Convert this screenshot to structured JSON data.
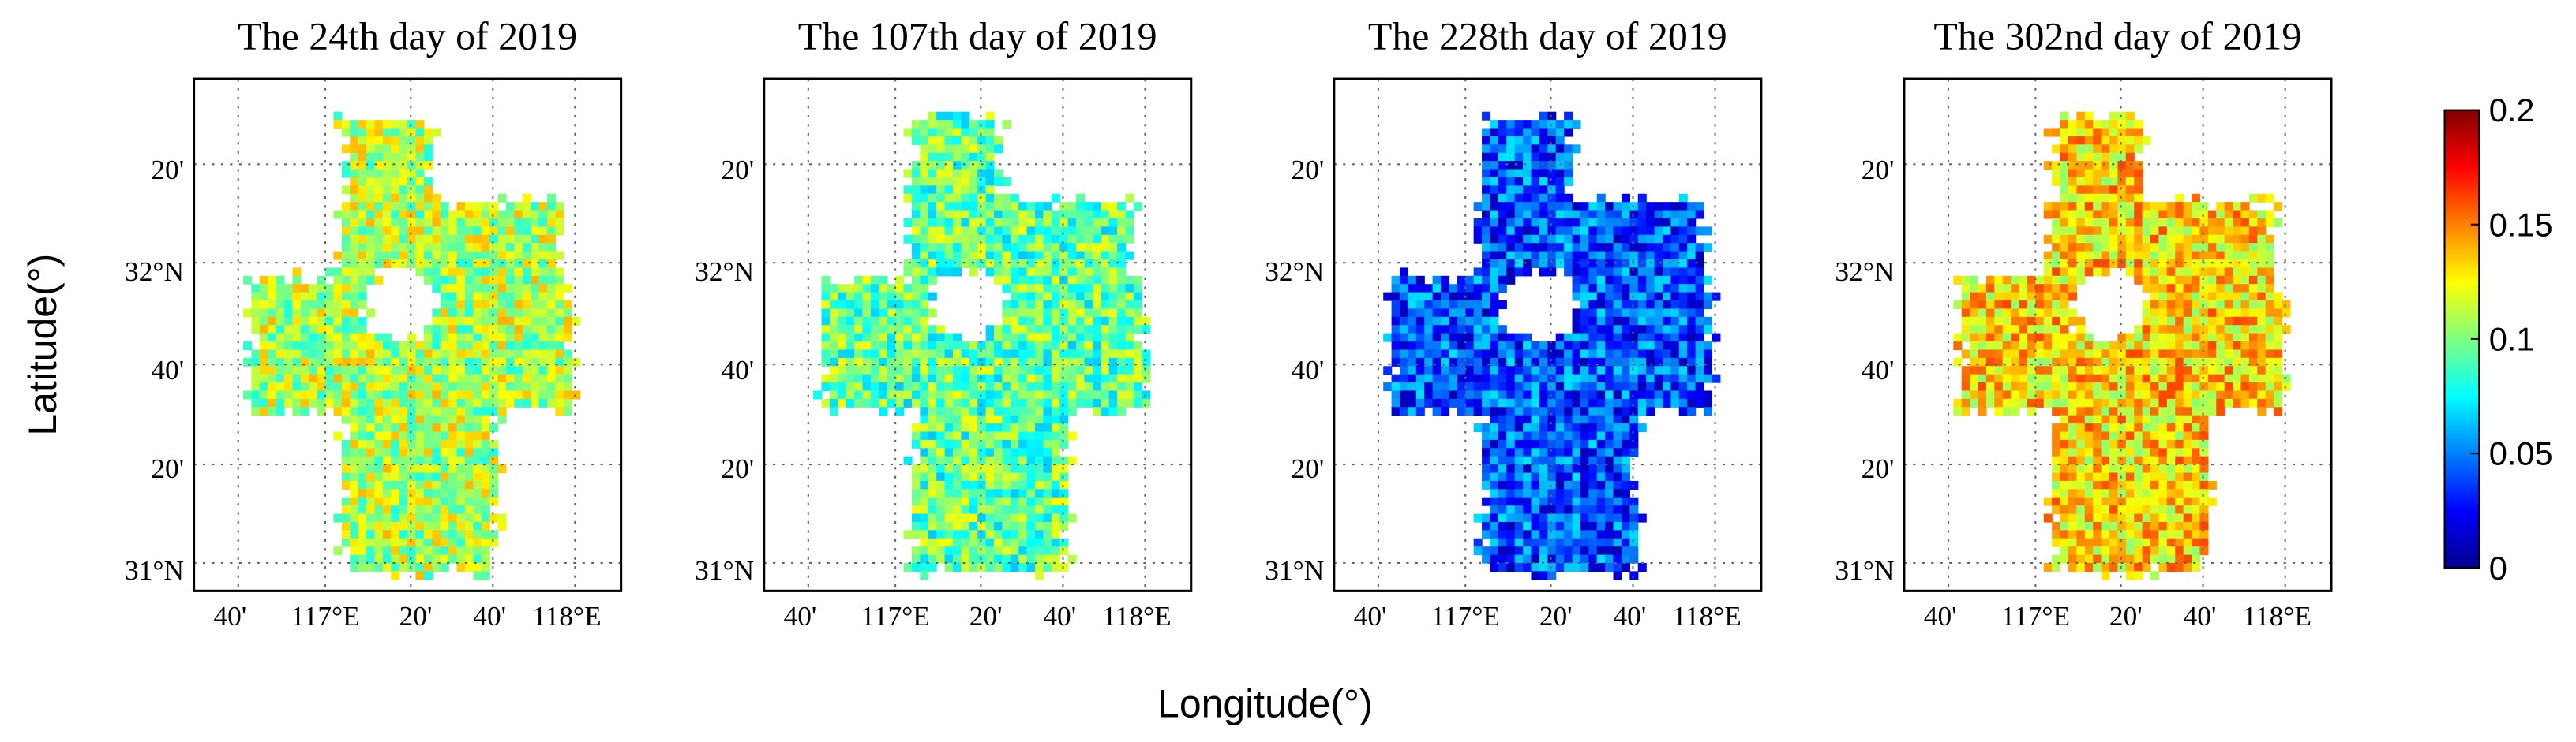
{
  "panels": [
    {
      "title": "The 24th day of 2019"
    },
    {
      "title": "The 107th day of 2019"
    },
    {
      "title": "The 228th day of 2019"
    },
    {
      "title": "The 302nd day of 2019"
    }
  ],
  "lat_ticks": [
    "20'",
    "32°N",
    "40'",
    "20'",
    "31°N"
  ],
  "lon_ticks": [
    "40'",
    "117°E",
    "20'",
    "40'",
    "118°E"
  ],
  "y_label": "Latitude(°)",
  "x_label": "Longitude(°)",
  "colorbar": {
    "min": 0,
    "max": 0.2,
    "ticks": [
      0,
      0.05,
      0.1,
      0.15,
      0.2
    ]
  }
}
